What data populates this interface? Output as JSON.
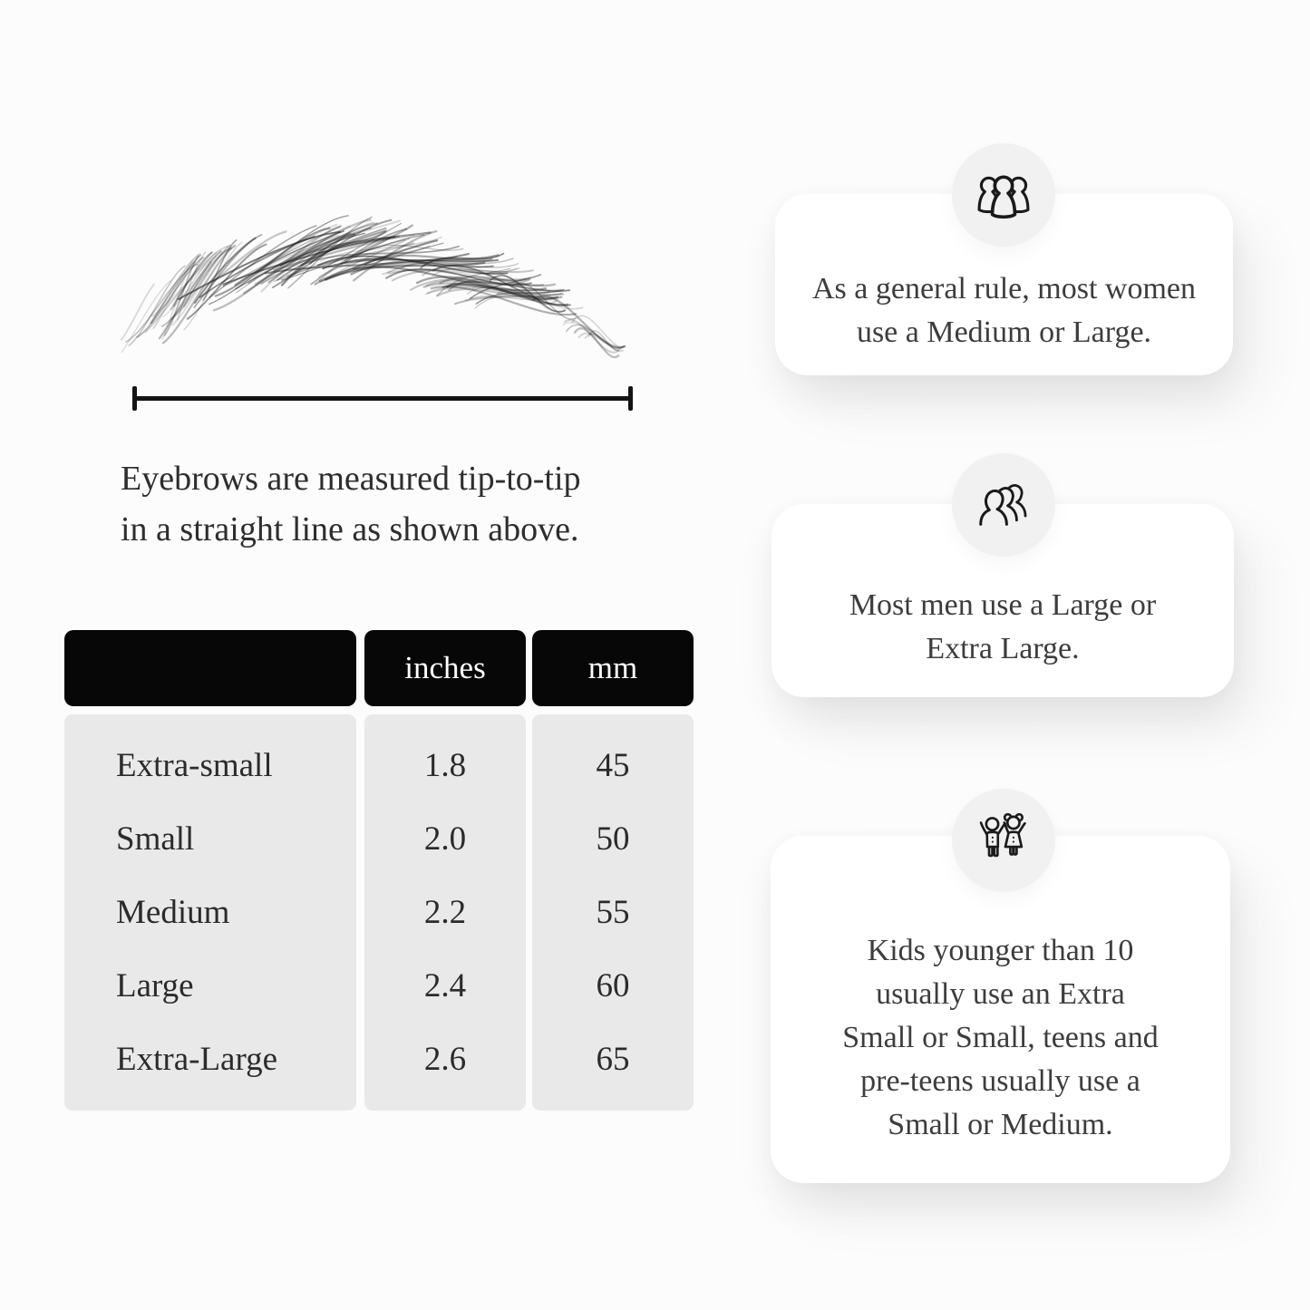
{
  "page": {
    "background": "#fcfcfc",
    "header_black": "#070707",
    "panel_gray": "#e9e9e9",
    "circle_gray": "#f1f1f1"
  },
  "measure_diagram": {
    "caption_lines": [
      "Eyebrows are measured tip-to-tip",
      "in a straight line as shown above."
    ]
  },
  "size_table": {
    "columns": [
      "",
      "inches",
      "mm"
    ],
    "rows": [
      {
        "size": "Extra-small",
        "inches": "1.8",
        "mm": "45"
      },
      {
        "size": "Small",
        "inches": "2.0",
        "mm": "50"
      },
      {
        "size": "Medium",
        "inches": "2.2",
        "mm": "55"
      },
      {
        "size": "Large",
        "inches": "2.4",
        "mm": "60"
      },
      {
        "size": "Extra-Large",
        "inches": "2.6",
        "mm": "65"
      }
    ]
  },
  "info_cards": [
    {
      "icon": "women-group-icon",
      "lines": [
        "As a general rule, most women",
        "use a Medium or Large."
      ]
    },
    {
      "icon": "men-group-icon",
      "lines": [
        "Most men use a Large or",
        "Extra Large."
      ]
    },
    {
      "icon": "kids-icon",
      "lines": [
        "Kids younger than 10",
        "usually use an Extra",
        "Small or Small, teens and",
        "pre-teens usually use a",
        "Small or Medium."
      ]
    }
  ]
}
